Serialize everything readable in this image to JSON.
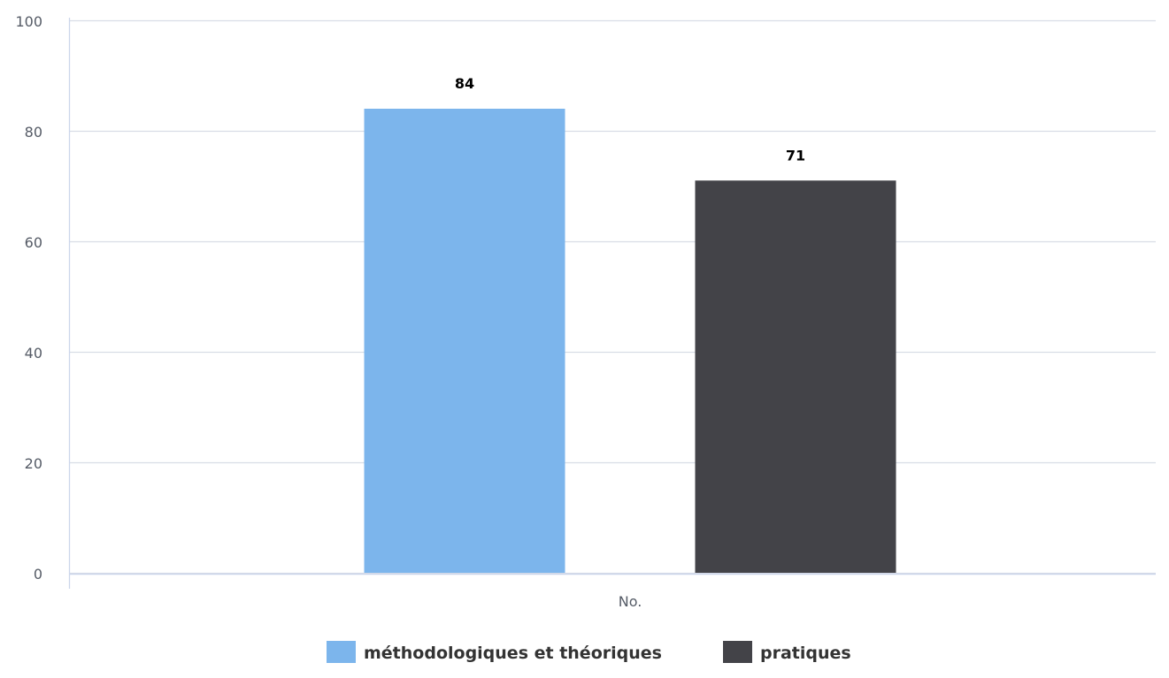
{
  "chart_data": {
    "type": "bar",
    "categories": [
      "No."
    ],
    "series": [
      {
        "name": "méthodologiques et théoriques",
        "values": [
          84
        ],
        "color": "#7cb5ec"
      },
      {
        "name": "pratiques",
        "values": [
          71
        ],
        "color": "#434348"
      }
    ],
    "data_labels": [
      "84",
      "71"
    ],
    "ylim": [
      0,
      100
    ],
    "yticks": [
      0,
      20,
      40,
      60,
      80,
      100
    ],
    "grid": true,
    "legend_position": "bottom-center"
  }
}
